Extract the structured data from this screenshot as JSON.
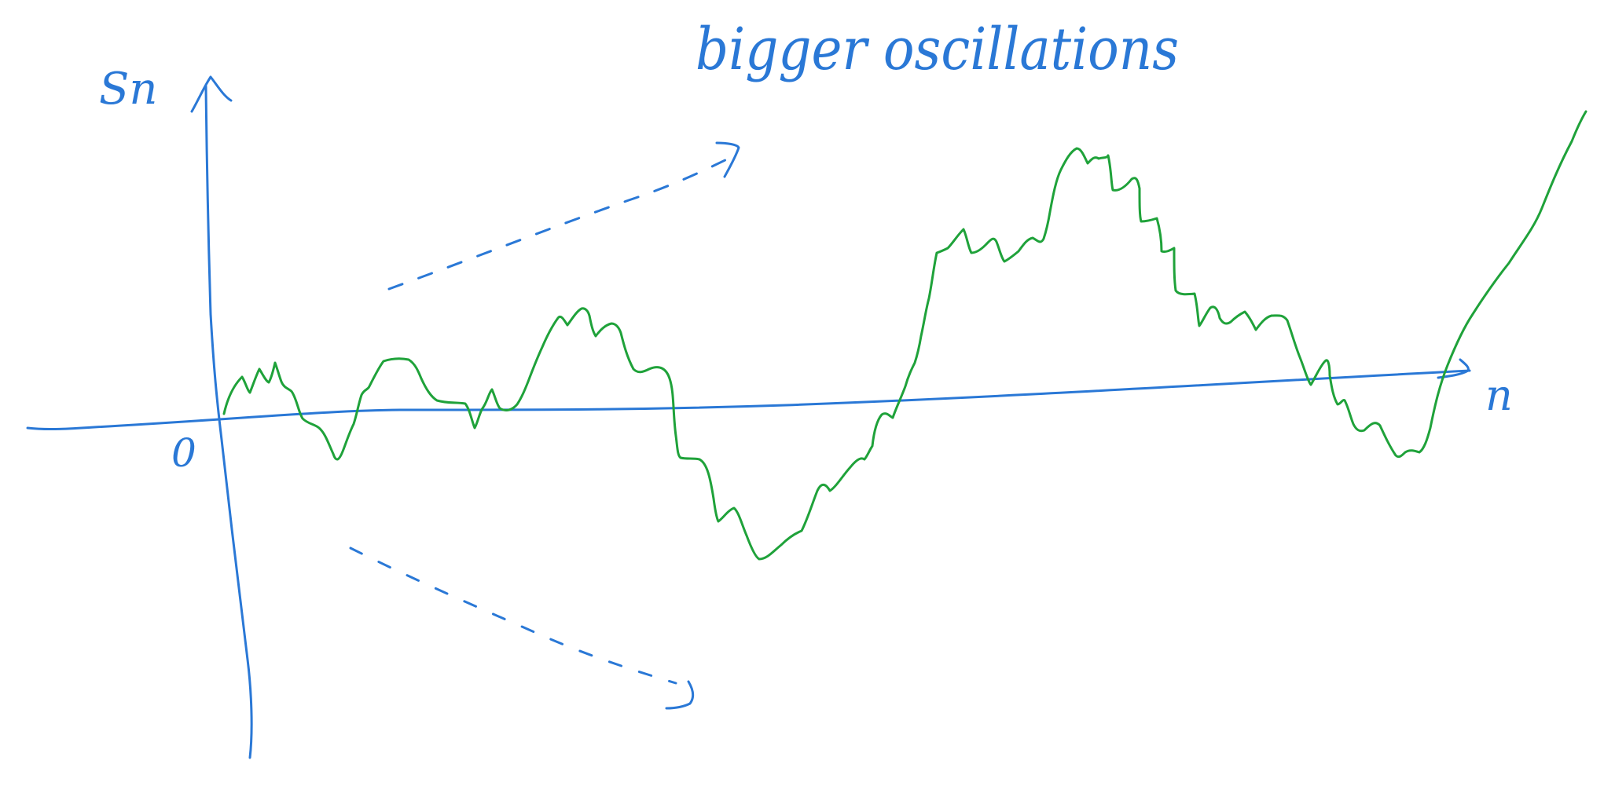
{
  "labels": {
    "y_axis": "Sn",
    "x_axis": "n",
    "origin": "0",
    "annotation": "bigger oscillations"
  },
  "colors": {
    "axes": "#2a78d6",
    "walk": "#1fa23a",
    "background": "#ffffff"
  }
}
